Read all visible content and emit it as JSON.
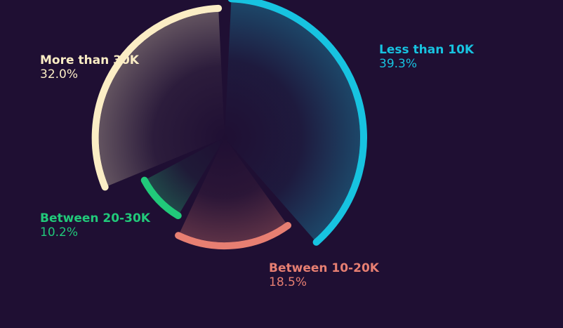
{
  "chart_data": {
    "type": "pie",
    "style": "radial segmented ring with fading wedges",
    "background": "#1f0f33",
    "slices": [
      {
        "name": "Less than 10K",
        "value": 39.3,
        "value_label": "39.3%",
        "color": "#17c3e0"
      },
      {
        "name": "Between 10-20K",
        "value": 18.5,
        "value_label": "18.5%",
        "color": "#e77f72"
      },
      {
        "name": "Between 20-30K",
        "value": 10.2,
        "value_label": "10.2%",
        "color": "#21c97a"
      },
      {
        "name": "More than 30K",
        "value": 32.0,
        "value_label": "32.0%",
        "color": "#fbedc5"
      }
    ]
  }
}
